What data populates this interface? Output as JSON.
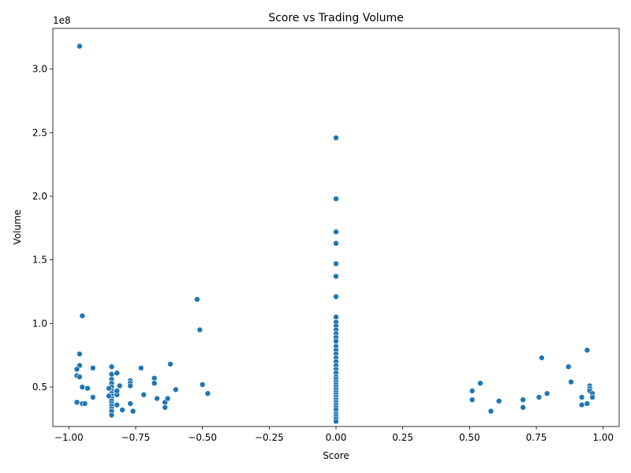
{
  "chart_data": {
    "type": "scatter",
    "title": "Score vs Trading Volume",
    "xlabel": "Score",
    "ylabel": "Volume",
    "y_offset_text": "1e8",
    "y_scale": 100000000,
    "xlim": [
      -1.06,
      1.06
    ],
    "ylim": [
      0.19,
      3.32
    ],
    "x_ticks": [
      -1.0,
      -0.75,
      -0.5,
      -0.25,
      0.0,
      0.25,
      0.5,
      0.75,
      1.0
    ],
    "x_tick_labels": [
      "−1.00",
      "−0.75",
      "−0.50",
      "−0.25",
      "0.00",
      "0.25",
      "0.50",
      "0.75",
      "1.00"
    ],
    "y_ticks": [
      0.5,
      1.0,
      1.5,
      2.0,
      2.5,
      3.0
    ],
    "y_tick_labels": [
      "0.5",
      "1.0",
      "1.5",
      "2.0",
      "2.5",
      "3.0"
    ],
    "grid": false,
    "legend": "none",
    "marker_color": "#1f77b4",
    "points": [
      [
        -0.96,
        3.18
      ],
      [
        -0.95,
        1.06
      ],
      [
        -0.96,
        0.76
      ],
      [
        -0.96,
        0.67
      ],
      [
        -0.97,
        0.64
      ],
      [
        -0.97,
        0.59
      ],
      [
        -0.96,
        0.58
      ],
      [
        -0.95,
        0.5
      ],
      [
        -0.93,
        0.49
      ],
      [
        -0.91,
        0.65
      ],
      [
        -0.91,
        0.42
      ],
      [
        -0.97,
        0.38
      ],
      [
        -0.95,
        0.37
      ],
      [
        -0.94,
        0.37
      ],
      [
        -0.84,
        0.66
      ],
      [
        -0.84,
        0.6
      ],
      [
        -0.84,
        0.56
      ],
      [
        -0.84,
        0.53
      ],
      [
        -0.84,
        0.5
      ],
      [
        -0.84,
        0.47
      ],
      [
        -0.84,
        0.45
      ],
      [
        -0.84,
        0.43
      ],
      [
        -0.84,
        0.41
      ],
      [
        -0.84,
        0.39
      ],
      [
        -0.84,
        0.37
      ],
      [
        -0.84,
        0.35
      ],
      [
        -0.84,
        0.33
      ],
      [
        -0.84,
        0.31
      ],
      [
        -0.84,
        0.28
      ],
      [
        -0.85,
        0.49
      ],
      [
        -0.85,
        0.43
      ],
      [
        -0.82,
        0.61
      ],
      [
        -0.82,
        0.44
      ],
      [
        -0.82,
        0.47
      ],
      [
        -0.81,
        0.51
      ],
      [
        -0.82,
        0.36
      ],
      [
        -0.8,
        0.32
      ],
      [
        -0.77,
        0.55
      ],
      [
        -0.77,
        0.53
      ],
      [
        -0.77,
        0.51
      ],
      [
        -0.77,
        0.37
      ],
      [
        -0.76,
        0.31
      ],
      [
        -0.73,
        0.65
      ],
      [
        -0.72,
        0.44
      ],
      [
        -0.68,
        0.57
      ],
      [
        -0.68,
        0.53
      ],
      [
        -0.67,
        0.41
      ],
      [
        -0.64,
        0.38
      ],
      [
        -0.64,
        0.34
      ],
      [
        -0.63,
        0.41
      ],
      [
        -0.62,
        0.68
      ],
      [
        -0.6,
        0.48
      ],
      [
        -0.52,
        1.19
      ],
      [
        -0.51,
        0.95
      ],
      [
        -0.5,
        0.52
      ],
      [
        -0.48,
        0.45
      ],
      [
        0.0,
        2.46
      ],
      [
        0.0,
        1.98
      ],
      [
        0.0,
        1.72
      ],
      [
        0.0,
        1.63
      ],
      [
        0.0,
        1.47
      ],
      [
        0.0,
        1.37
      ],
      [
        0.0,
        1.21
      ],
      [
        0.0,
        1.05
      ],
      [
        0.0,
        1.01
      ],
      [
        0.0,
        0.98
      ],
      [
        0.0,
        0.95
      ],
      [
        0.0,
        0.92
      ],
      [
        0.0,
        0.89
      ],
      [
        0.0,
        0.86
      ],
      [
        0.0,
        0.82
      ],
      [
        0.0,
        0.79
      ],
      [
        0.0,
        0.76
      ],
      [
        0.0,
        0.73
      ],
      [
        0.0,
        0.7
      ],
      [
        0.0,
        0.67
      ],
      [
        0.0,
        0.64
      ],
      [
        0.0,
        0.61
      ],
      [
        0.0,
        0.58
      ],
      [
        0.0,
        0.56
      ],
      [
        0.0,
        0.54
      ],
      [
        0.0,
        0.52
      ],
      [
        0.0,
        0.5
      ],
      [
        0.0,
        0.48
      ],
      [
        0.0,
        0.46
      ],
      [
        0.0,
        0.44
      ],
      [
        0.0,
        0.42
      ],
      [
        0.0,
        0.4
      ],
      [
        0.0,
        0.38
      ],
      [
        0.0,
        0.36
      ],
      [
        0.0,
        0.34
      ],
      [
        0.0,
        0.32
      ],
      [
        0.0,
        0.29
      ],
      [
        0.0,
        0.27
      ],
      [
        0.0,
        0.25
      ],
      [
        0.0,
        0.23
      ],
      [
        0.51,
        0.47
      ],
      [
        0.51,
        0.4
      ],
      [
        0.54,
        0.53
      ],
      [
        0.58,
        0.31
      ],
      [
        0.61,
        0.39
      ],
      [
        0.7,
        0.4
      ],
      [
        0.7,
        0.34
      ],
      [
        0.76,
        0.42
      ],
      [
        0.77,
        0.73
      ],
      [
        0.79,
        0.45
      ],
      [
        0.87,
        0.66
      ],
      [
        0.88,
        0.54
      ],
      [
        0.92,
        0.42
      ],
      [
        0.92,
        0.36
      ],
      [
        0.94,
        0.79
      ],
      [
        0.94,
        0.37
      ],
      [
        0.95,
        0.51
      ],
      [
        0.95,
        0.49
      ],
      [
        0.95,
        0.47
      ],
      [
        0.96,
        0.45
      ],
      [
        0.96,
        0.42
      ]
    ]
  }
}
